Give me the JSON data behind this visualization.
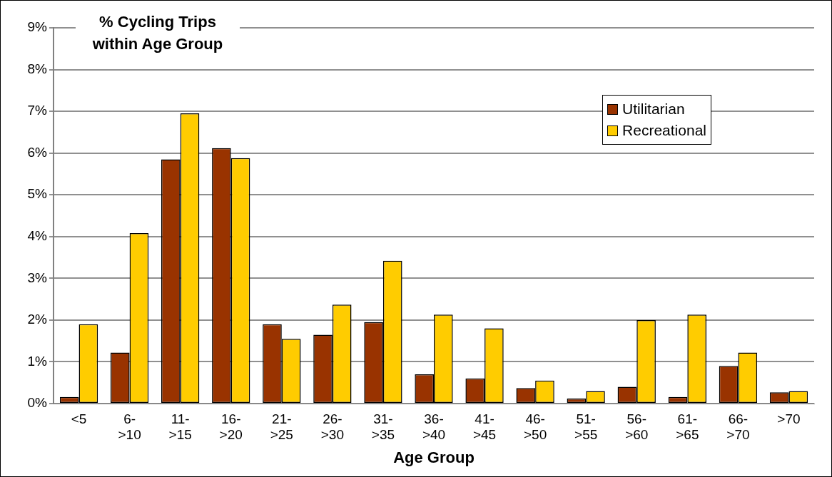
{
  "chart_data": {
    "type": "bar",
    "title": "% Cycling Trips within Age Group",
    "xlabel": "Age Group",
    "categories": [
      "<5",
      "6->10",
      "11->15",
      "16->20",
      "21->25",
      "26->30",
      "31->35",
      "36->40",
      "41->45",
      "46->50",
      "51->55",
      "56->60",
      "61->65",
      "66->70",
      ">70"
    ],
    "series": [
      {
        "name": "Utilitarian",
        "color": "#993300",
        "values": [
          0.16,
          1.22,
          5.85,
          6.12,
          1.9,
          1.65,
          1.95,
          0.7,
          0.6,
          0.37,
          0.12,
          0.4,
          0.16,
          0.9,
          0.27
        ]
      },
      {
        "name": "Recreational",
        "color": "#ffcc00",
        "values": [
          1.9,
          4.08,
          6.95,
          5.88,
          1.55,
          2.37,
          3.42,
          2.13,
          1.8,
          0.55,
          0.3,
          2.0,
          2.13,
          1.22,
          0.3
        ]
      }
    ],
    "ylim": [
      0,
      9
    ],
    "yticks": [
      {
        "value": 0,
        "label": "0%"
      },
      {
        "value": 1,
        "label": "1%"
      },
      {
        "value": 2,
        "label": "2%"
      },
      {
        "value": 3,
        "label": "3%"
      },
      {
        "value": 4,
        "label": "4%"
      },
      {
        "value": 5,
        "label": "5%"
      },
      {
        "value": 6,
        "label": "6%"
      },
      {
        "value": 7,
        "label": "7%"
      },
      {
        "value": 8,
        "label": "8%"
      },
      {
        "value": 9,
        "label": "9%"
      }
    ],
    "grid": "y",
    "legend": "top right"
  }
}
